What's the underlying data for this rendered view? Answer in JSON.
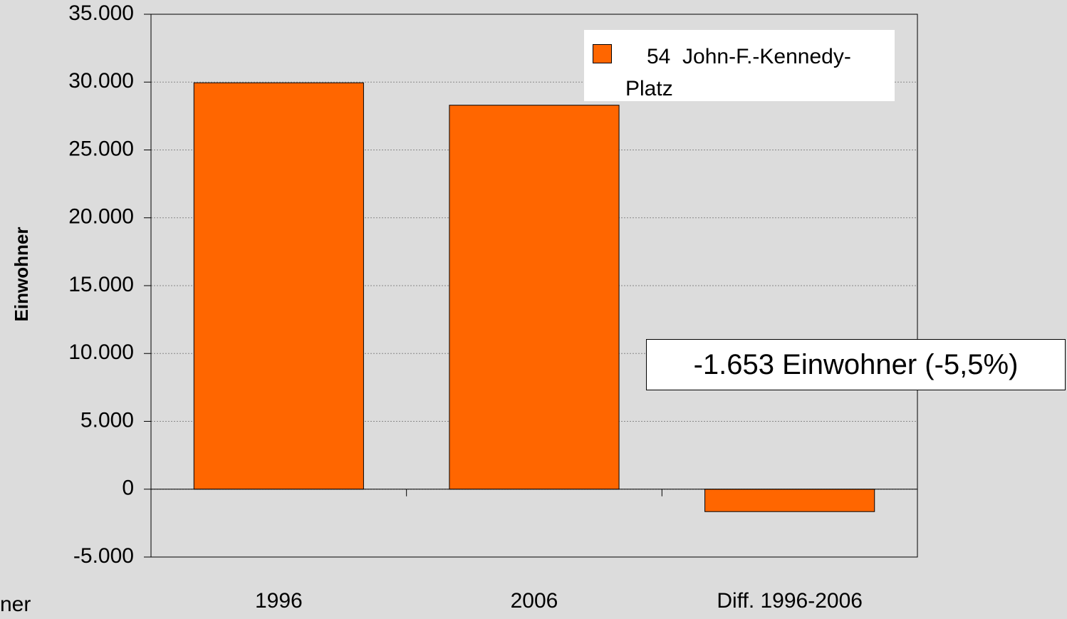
{
  "chart_data": {
    "type": "bar",
    "y_label": "Einwohner",
    "side_text": "ner",
    "categories": [
      "1996",
      "2006",
      "Diff. 1996-2006"
    ],
    "series": [
      {
        "name": "54  John-F.-Kennedy-Platz",
        "color": "#ff6600",
        "values": [
          29950,
          28297,
          -1653
        ]
      }
    ],
    "annotation": "-1.653 Einwohner (-5,5%)",
    "ylim": [
      -5000,
      35000
    ],
    "yticks": [
      {
        "value": -5000,
        "label": "-5.000"
      },
      0,
      {
        "value": 5000,
        "label": "5.000"
      },
      {
        "value": 10000,
        "label": "10.000"
      },
      {
        "value": 15000,
        "label": "15.000"
      },
      {
        "value": 20000,
        "label": "20.000"
      },
      {
        "value": 25000,
        "label": "25.000"
      },
      {
        "value": 30000,
        "label": "30.000"
      },
      {
        "value": 35000,
        "label": "35.000"
      }
    ],
    "grid": true,
    "legend": "top-right"
  }
}
